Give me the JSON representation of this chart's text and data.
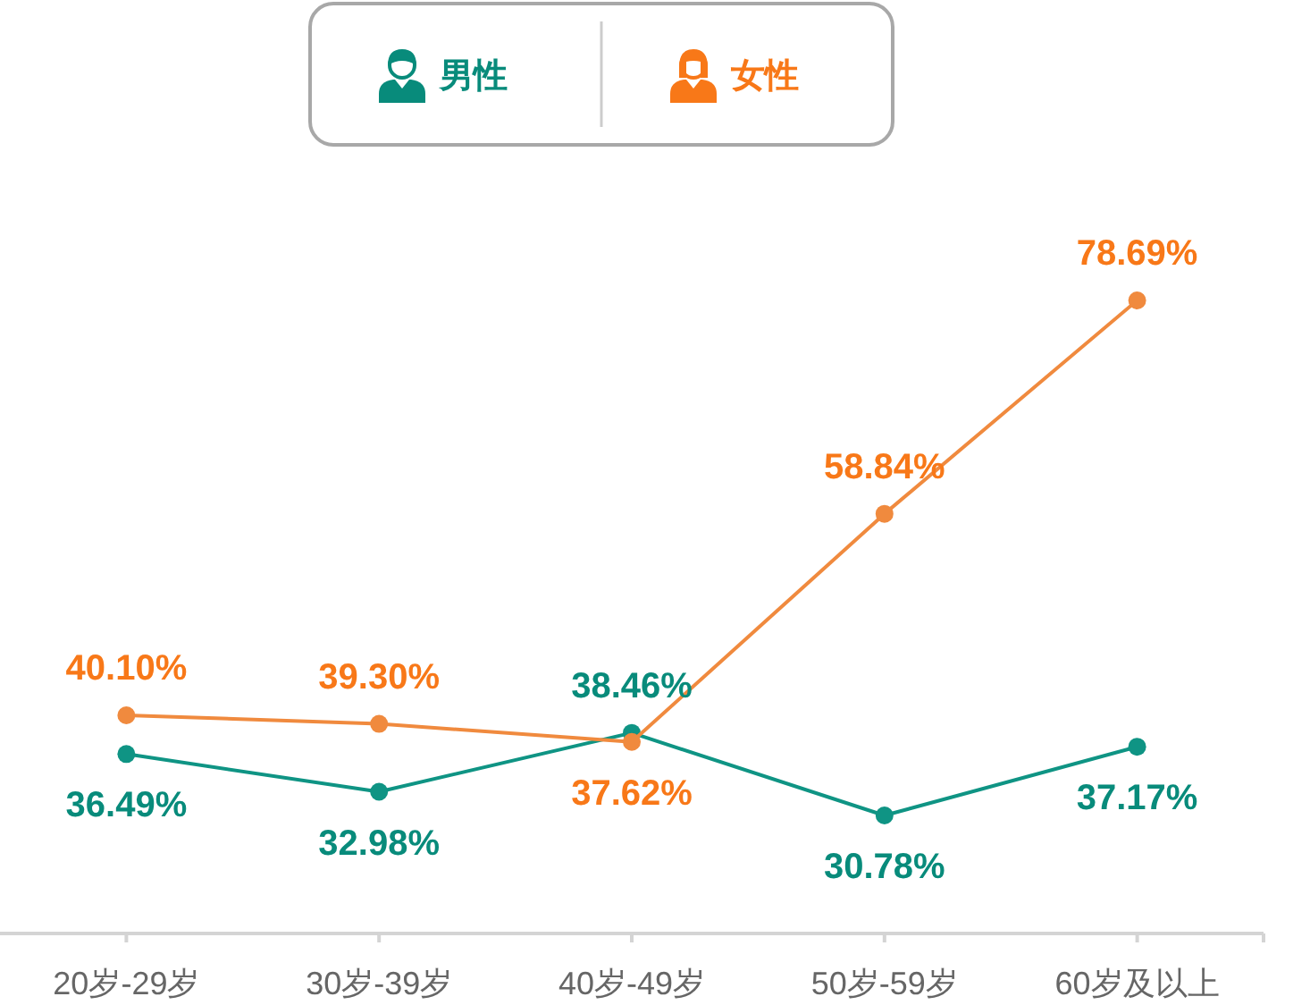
{
  "chart_data": {
    "type": "line",
    "categories": [
      "20岁-29岁",
      "30岁-39岁",
      "40岁-49岁",
      "50岁-59岁",
      "60岁及以上"
    ],
    "series": [
      {
        "name": "男性",
        "color": "#0f9484",
        "values": [
          36.49,
          32.98,
          38.46,
          30.78,
          37.17
        ],
        "value_labels": [
          "36.49%",
          "32.98%",
          "38.46%",
          "30.78%",
          "37.17%"
        ]
      },
      {
        "name": "女性",
        "color": "#f08a3e",
        "values": [
          40.1,
          39.3,
          37.62,
          58.84,
          78.69
        ],
        "value_labels": [
          "40.10%",
          "39.30%",
          "37.62%",
          "58.84%",
          "78.69%"
        ]
      }
    ],
    "tick_labels": "x",
    "legend": "top",
    "marker": "circle"
  }
}
